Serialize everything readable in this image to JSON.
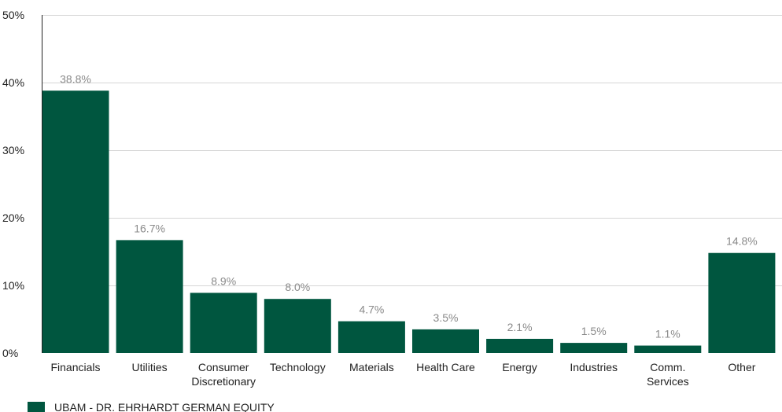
{
  "chart_data": {
    "type": "bar",
    "title": "",
    "xlabel": "",
    "ylabel": "",
    "ylim": [
      0,
      50
    ],
    "yticks": [
      0,
      10,
      20,
      30,
      40,
      50
    ],
    "ytick_labels": [
      "0%",
      "10%",
      "20%",
      "30%",
      "40%",
      "50%"
    ],
    "grid": true,
    "legend_position": "bottom-left",
    "categories": [
      [
        "Financials"
      ],
      [
        "Utilities"
      ],
      [
        "Consumer",
        "Discretionary"
      ],
      [
        "Technology"
      ],
      [
        "Materials"
      ],
      [
        "Health Care"
      ],
      [
        "Energy"
      ],
      [
        "Industries"
      ],
      [
        "Comm.",
        "Services"
      ],
      [
        "Other"
      ]
    ],
    "series": [
      {
        "name": "UBAM - DR. EHRHARDT GERMAN EQUITY",
        "color": "#00563f",
        "values": [
          38.8,
          16.7,
          8.9,
          8.0,
          4.7,
          3.5,
          2.1,
          1.5,
          1.1,
          14.8
        ],
        "value_labels": [
          "38.8%",
          "16.7%",
          "8.9%",
          "8.0%",
          "4.7%",
          "3.5%",
          "2.1%",
          "1.5%",
          "1.1%",
          "14.8%"
        ]
      }
    ],
    "colors": {
      "gridline": "#d6d6d6",
      "axis": "#222222",
      "value_label": "#8a8a8a"
    }
  }
}
